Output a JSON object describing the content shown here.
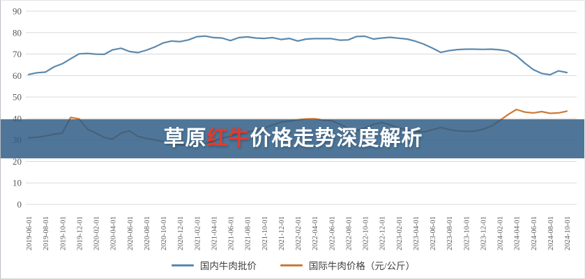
{
  "banner": {
    "full_title": "草原红牛价格走势深度解析",
    "seg_prefix": "草原",
    "seg_highlight": "红牛",
    "seg_suffix": "价格走势深度解析",
    "highlight_color": "#e23b2e",
    "text_color": "#ffffff",
    "background_color": "rgba(45,92,132,0.84)"
  },
  "legend": {
    "items": [
      {
        "label": "国内牛肉批价",
        "color": "#5b89ae"
      },
      {
        "label": "国际牛肉价格（元/公斤）",
        "color": "#cd7a37"
      }
    ]
  },
  "chart_data": {
    "type": "line",
    "title": "",
    "xlabel": "",
    "ylabel": "",
    "ylim": [
      0,
      90
    ],
    "ytick_step": 10,
    "grid": true,
    "legend_position": "bottom",
    "tick_every": 2,
    "x": [
      "2019-06-01",
      "2019-07-01",
      "2019-08-01",
      "2019-09-01",
      "2019-10-01",
      "2019-11-01",
      "2019-12-01",
      "2020-01-01",
      "2020-02-01",
      "2020-03-01",
      "2020-04-01",
      "2020-05-01",
      "2020-06-01",
      "2020-07-01",
      "2020-08-01",
      "2020-09-01",
      "2020-10-01",
      "2020-11-01",
      "2020-12-01",
      "2021-01-01",
      "2021-02-01",
      "2021-03-01",
      "2021-04-01",
      "2021-05-01",
      "2021-06-01",
      "2021-07-01",
      "2021-08-01",
      "2021-09-01",
      "2021-10-01",
      "2021-11-01",
      "2021-12-01",
      "2022-01-01",
      "2022-02-01",
      "2022-03-01",
      "2022-04-01",
      "2022-05-01",
      "2022-06-01",
      "2022-07-01",
      "2022-08-01",
      "2022-09-01",
      "2022-10-01",
      "2022-11-01",
      "2022-12-01",
      "2023-01-01",
      "2023-02-01",
      "2023-03-01",
      "2023-04-01",
      "2023-05-01",
      "2023-06-01",
      "2023-07-01",
      "2023-08-01",
      "2023-09-01",
      "2023-10-01",
      "2023-11-01",
      "2023-12-01",
      "2024-01-01",
      "2024-02-01",
      "2024-03-01",
      "2024-04-01",
      "2024-05-01",
      "2024-06-01",
      "2024-07-01",
      "2024-08-01",
      "2024-09-01",
      "2024-10-01"
    ],
    "series": [
      {
        "name": "国内牛肉批价",
        "color": "#5b89ae",
        "values": [
          60.5,
          61.3,
          61.6,
          64.0,
          65.5,
          67.8,
          70.1,
          70.3,
          70.0,
          69.9,
          72.0,
          72.7,
          71.2,
          70.7,
          71.8,
          73.3,
          75.2,
          76.1,
          75.8,
          76.6,
          78.1,
          78.4,
          77.7,
          77.5,
          76.3,
          77.7,
          78.0,
          77.5,
          77.3,
          77.7,
          76.8,
          77.3,
          76.1,
          77.0,
          77.2,
          77.2,
          77.2,
          76.5,
          76.6,
          78.2,
          78.3,
          77.0,
          77.5,
          77.8,
          77.4,
          77.0,
          76.0,
          74.6,
          72.8,
          70.8,
          71.6,
          72.1,
          72.3,
          72.3,
          72.2,
          72.3,
          72.0,
          71.4,
          69.2,
          65.8,
          62.8,
          61.0,
          60.4,
          62.2,
          61.4
        ]
      },
      {
        "name": "国际牛肉价格（元/公斤）",
        "color": "#cd7a37",
        "values": [
          31.0,
          31.3,
          31.8,
          32.7,
          33.2,
          40.5,
          39.8,
          35.0,
          33.2,
          31.2,
          30.4,
          33.2,
          34.3,
          31.6,
          30.8,
          30.1,
          29.2,
          28.4,
          27.7,
          27.5,
          27.8,
          28.3,
          29.5,
          30.8,
          31.8,
          32.8,
          33.6,
          34.6,
          35.6,
          36.9,
          38.3,
          38.8,
          39.3,
          39.8,
          39.9,
          39.2,
          39.0,
          37.4,
          35.4,
          34.3,
          35.6,
          37.3,
          38.1,
          37.0,
          35.6,
          34.8,
          34.0,
          33.7,
          34.8,
          35.8,
          34.9,
          34.2,
          34.0,
          34.1,
          35.0,
          36.4,
          39.0,
          41.8,
          44.2,
          43.0,
          42.6,
          43.2,
          42.4,
          42.6,
          43.4
        ]
      }
    ],
    "grid_color": "#d9d9d9",
    "axis_text_color": "#595959"
  }
}
